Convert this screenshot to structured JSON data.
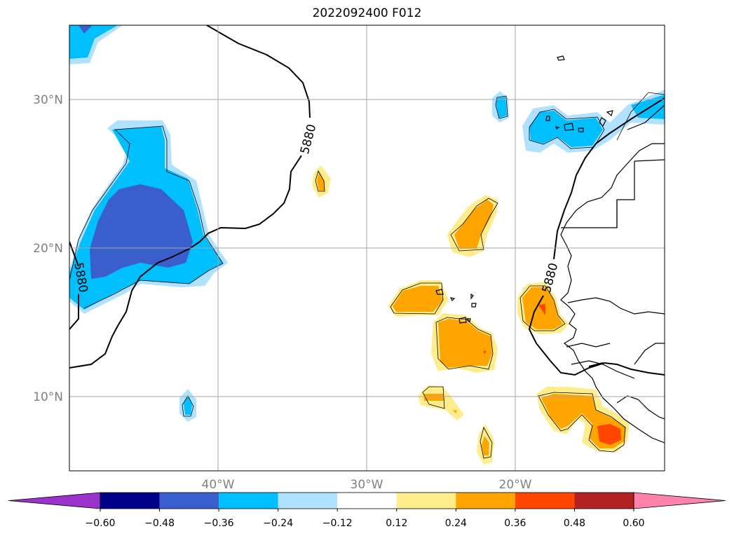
{
  "title": "2022092400 F012",
  "lat_labels": [
    {
      "lat": 30,
      "text": "30°N"
    },
    {
      "lat": 20,
      "text": "20°N"
    },
    {
      "lat": 10,
      "text": "10°N"
    }
  ],
  "lon_labels": [
    {
      "lon": -40,
      "text": "40°W"
    },
    {
      "lon": -30,
      "text": "30°W"
    },
    {
      "lon": -20,
      "text": "20°W"
    }
  ],
  "contour": {
    "level_text": "5880",
    "color": "#000000"
  },
  "colorbar": {
    "ticks": [
      "−0.60",
      "−0.48",
      "−0.36",
      "−0.24",
      "−0.12",
      "0.12",
      "0.24",
      "0.36",
      "0.48",
      "0.60"
    ],
    "colors": [
      "#9933cc",
      "#00008b",
      "#3a5fcd",
      "#00bfff",
      "#b0e2ff",
      "#ffffff",
      "#ffec8b",
      "#ffa500",
      "#ff4500",
      "#b22222",
      "#ff82ab"
    ]
  },
  "palette": {
    "light_blue": "#b0e2ff",
    "blue": "#00bfff",
    "royal_blue": "#3a5fcd",
    "light_yellow": "#ffec8b",
    "orange": "#ffa500",
    "red_orange": "#ff4500"
  }
}
